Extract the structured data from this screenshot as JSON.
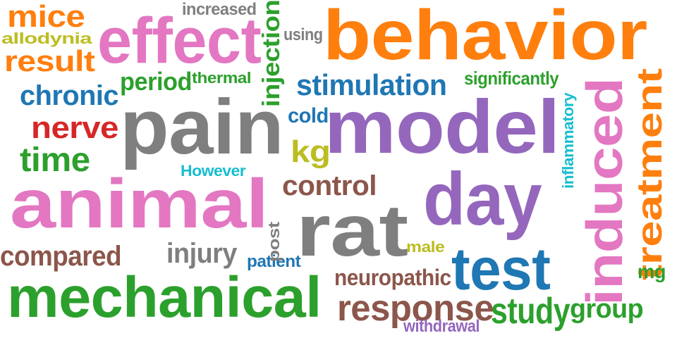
{
  "colors": {
    "background": "#ffffff",
    "orange": "#ff7f0e",
    "pink": "#e377c2",
    "gray": "#7f7f7f",
    "purple": "#9467bd",
    "blue": "#1f77b4",
    "green": "#2ca02c",
    "brown": "#8c564b",
    "red": "#d62728",
    "olive": "#bcbd22",
    "cyan": "#17becf"
  },
  "words": [
    {
      "text": "behavior",
      "color": "orange"
    },
    {
      "text": "pain",
      "color": "gray"
    },
    {
      "text": "model",
      "color": "purple"
    },
    {
      "text": "animal",
      "color": "pink"
    },
    {
      "text": "rat",
      "color": "gray"
    },
    {
      "text": "day",
      "color": "purple"
    },
    {
      "text": "mechanical",
      "color": "green"
    },
    {
      "text": "effect",
      "color": "pink"
    },
    {
      "text": "induced",
      "color": "pink"
    },
    {
      "text": "test",
      "color": "blue"
    },
    {
      "text": "treatment",
      "color": "orange"
    },
    {
      "text": "response",
      "color": "brown"
    },
    {
      "text": "mice",
      "color": "orange"
    },
    {
      "text": "result",
      "color": "orange"
    },
    {
      "text": "stimulation",
      "color": "blue"
    },
    {
      "text": "chronic",
      "color": "blue"
    },
    {
      "text": "nerve",
      "color": "red"
    },
    {
      "text": "time",
      "color": "green"
    },
    {
      "text": "injection",
      "color": "green"
    },
    {
      "text": "control",
      "color": "brown"
    },
    {
      "text": "compared",
      "color": "brown"
    },
    {
      "text": "study",
      "color": "green"
    },
    {
      "text": "group",
      "color": "green"
    },
    {
      "text": "period",
      "color": "green"
    },
    {
      "text": "injury",
      "color": "gray"
    },
    {
      "text": "neuropathic",
      "color": "brown"
    },
    {
      "text": "kg",
      "color": "olive"
    },
    {
      "text": "cold",
      "color": "blue"
    },
    {
      "text": "increased",
      "color": "gray"
    },
    {
      "text": "significantly",
      "color": "green"
    },
    {
      "text": "thermal",
      "color": "green"
    },
    {
      "text": "allodynia",
      "color": "olive"
    },
    {
      "text": "using",
      "color": "gray"
    },
    {
      "text": "However",
      "color": "cyan"
    },
    {
      "text": "inflammatory",
      "color": "cyan"
    },
    {
      "text": "withdrawal",
      "color": "purple"
    },
    {
      "text": "patient",
      "color": "blue"
    },
    {
      "text": "male",
      "color": "olive"
    },
    {
      "text": "post",
      "color": "gray"
    },
    {
      "text": "mg",
      "color": "green"
    }
  ]
}
